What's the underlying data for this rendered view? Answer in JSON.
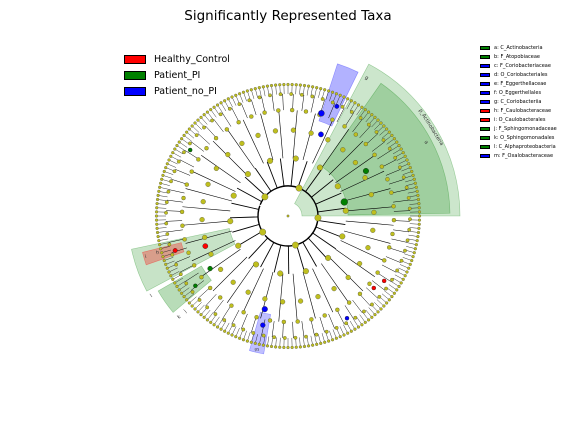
{
  "title": "Significantly Represented Taxa",
  "colors": {
    "Healthy_Control": "#ff0000",
    "Patient_PI": "#008000",
    "Patient_no_PI": "#0000ff",
    "non_significant_node": "#bfbf1f",
    "branch": "#000000"
  },
  "groups": [
    {
      "label": "Healthy_Control",
      "color": "#ff0000"
    },
    {
      "label": "Patient_PI",
      "color": "#008000"
    },
    {
      "label": "Patient_no_PI",
      "color": "#0000ff"
    }
  ],
  "clade_legend": [
    {
      "label": "a: C_Actinobacteria",
      "color": "#008000"
    },
    {
      "label": "b: F_Atopobiaceae",
      "color": "#008000"
    },
    {
      "label": "c: F_Coriobacteriaceae",
      "color": "#0000ff"
    },
    {
      "label": "d: O_Coriobacteriales",
      "color": "#0000ff"
    },
    {
      "label": "e: F_Eggerthellaceae",
      "color": "#0000ff"
    },
    {
      "label": "f: O_Eggerthellales",
      "color": "#0000ff"
    },
    {
      "label": "g: C_Coriobacteriia",
      "color": "#0000ff"
    },
    {
      "label": "h: F_Caulobacteraceae",
      "color": "#ff0000"
    },
    {
      "label": "i: O_Caulobacterales",
      "color": "#ff0000"
    },
    {
      "label": "j: F_Sphingomonadaceae",
      "color": "#008000"
    },
    {
      "label": "k: O_Sphingomonadales",
      "color": "#008000"
    },
    {
      "label": "l: C_Alphaproteobacteria",
      "color": "#008000"
    },
    {
      "label": "m: F_Oxalobacteraceae",
      "color": "#0000ff"
    }
  ],
  "sector_labels": [
    {
      "text": "p_Actinobacteria",
      "group": "Patient_PI"
    },
    {
      "text": "a",
      "group": "Patient_PI"
    },
    {
      "text": "l",
      "group": "Patient_PI"
    },
    {
      "text": "g",
      "group": "Patient_no_PI"
    },
    {
      "text": "i",
      "group": "Healthy_Control"
    },
    {
      "text": "h",
      "group": "Healthy_Control"
    },
    {
      "text": "k",
      "group": "Patient_PI"
    },
    {
      "text": "j",
      "group": "Patient_PI"
    },
    {
      "text": "m",
      "group": "Patient_no_PI"
    }
  ]
}
